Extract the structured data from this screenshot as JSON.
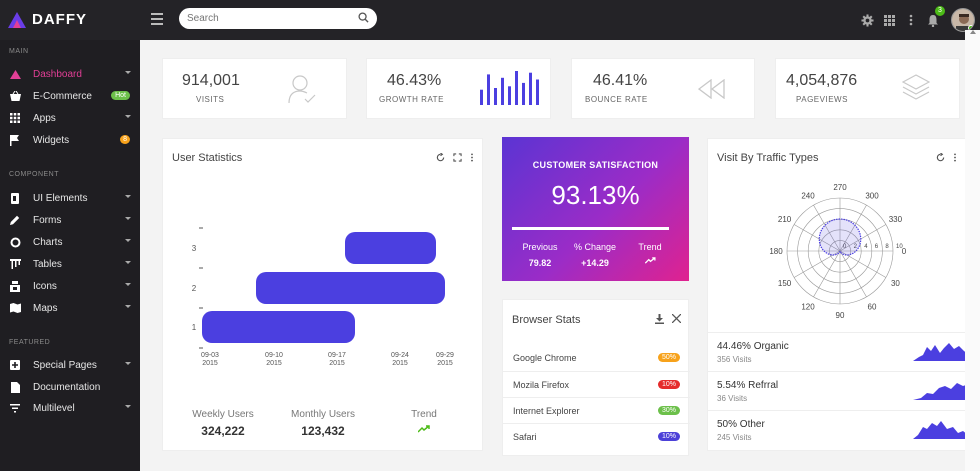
{
  "app": {
    "title": "DAFFY"
  },
  "search": {
    "placeholder": "Search"
  },
  "topbar": {
    "notification_count": "3"
  },
  "sidebar": {
    "sections": [
      "MAIN",
      "COMPONENT",
      "FEATURED"
    ],
    "items": [
      {
        "label": "Dashboard",
        "icon": "palette-icon"
      },
      {
        "label": "E-Commerce",
        "icon": "basket-icon",
        "badge": "Hot"
      },
      {
        "label": "Apps",
        "icon": "grid-icon"
      },
      {
        "label": "Widgets",
        "icon": "flag-icon",
        "badge": "8"
      },
      {
        "label": "UI Elements",
        "icon": "layers-icon"
      },
      {
        "label": "Forms",
        "icon": "pencil-icon"
      },
      {
        "label": "Charts",
        "icon": "donut-icon"
      },
      {
        "label": "Tables",
        "icon": "table-icon"
      },
      {
        "label": "Icons",
        "icon": "box-icon"
      },
      {
        "label": "Maps",
        "icon": "map-icon"
      },
      {
        "label": "Special Pages",
        "icon": "plus-square-icon"
      },
      {
        "label": "Documentation",
        "icon": "document-icon"
      },
      {
        "label": "Multilevel",
        "icon": "filter-icon"
      }
    ]
  },
  "stats": [
    {
      "value": "914,001",
      "label": "VISITS",
      "icon": "user-icon"
    },
    {
      "value": "46.43%",
      "label": "GROWTH RATE",
      "icon": "bar-chart-icon"
    },
    {
      "value": "46.41%",
      "label": "BOUNCE RATE",
      "icon": "rewind-icon"
    },
    {
      "value": "4,054,876",
      "label": "PAGEVIEWS",
      "icon": "stack-icon"
    }
  ],
  "growth_bars": [
    0.45,
    0.9,
    0.5,
    0.8,
    0.55,
    1.0,
    0.65,
    0.95,
    0.75
  ],
  "user_stats": {
    "title": "User Statistics",
    "footer": [
      {
        "label": "Weekly Users",
        "value": "324,222"
      },
      {
        "label": "Monthly Users",
        "value": "123,432"
      },
      {
        "label": "Trend",
        "value": ""
      }
    ]
  },
  "satisfaction": {
    "title": "CUSTOMER SATISFACTION",
    "value": "93.13%",
    "previous_label": "Previous",
    "previous_value": "79.82",
    "change_label": "% Change",
    "change_value": "+14.29",
    "trend_label": "Trend"
  },
  "browser_stats": {
    "title": "Browser Stats",
    "rows": [
      {
        "name": "Google Chrome",
        "pct": "50%",
        "color": "#f7a21b"
      },
      {
        "name": "Mozila Firefox",
        "pct": "10%",
        "color": "#e52b2b"
      },
      {
        "name": "Internet Explorer",
        "pct": "30%",
        "color": "#6cc04a"
      },
      {
        "name": "Safari",
        "pct": "10%",
        "color": "#4c41d8"
      }
    ]
  },
  "traffic": {
    "title": "Visit By Traffic Types",
    "rows": [
      {
        "label": "44.46% Organic",
        "sub": "356 Visits"
      },
      {
        "label": "5.54% Refrral",
        "sub": "36 Visits"
      },
      {
        "label": "50% Other",
        "sub": "245 Visits"
      }
    ]
  },
  "chart_data": [
    {
      "type": "bar",
      "orientation": "horizontal",
      "title": "User Statistics",
      "categories": [
        "1",
        "2",
        "3"
      ],
      "series": [
        {
          "start": [
            "09-03 2015",
            "09-10 2015",
            "09-17 2015"
          ],
          "end": [
            "09-17 2015",
            "09-30 2015",
            "09-30 2015"
          ]
        }
      ],
      "x_ticks": [
        "09-03\n2015",
        "09-10\n2015",
        "09-17\n2015",
        "09-24\n2015",
        "09-29\n2015"
      ],
      "y_ticks": [
        "1",
        "2",
        "3"
      ]
    },
    {
      "type": "polar",
      "title": "Visit By Traffic Types",
      "angle_ticks": [
        "0",
        "30",
        "60",
        "90",
        "120",
        "150",
        "180",
        "210",
        "240",
        "270",
        "300",
        "330"
      ],
      "radial_ticks": [
        "0",
        "2",
        "4",
        "6",
        "8",
        "10"
      ]
    }
  ],
  "colors": {
    "accent": "#4b3fe0",
    "pink": "#e23f96",
    "sidebar": "#1f1e22",
    "topbar": "#242327"
  }
}
